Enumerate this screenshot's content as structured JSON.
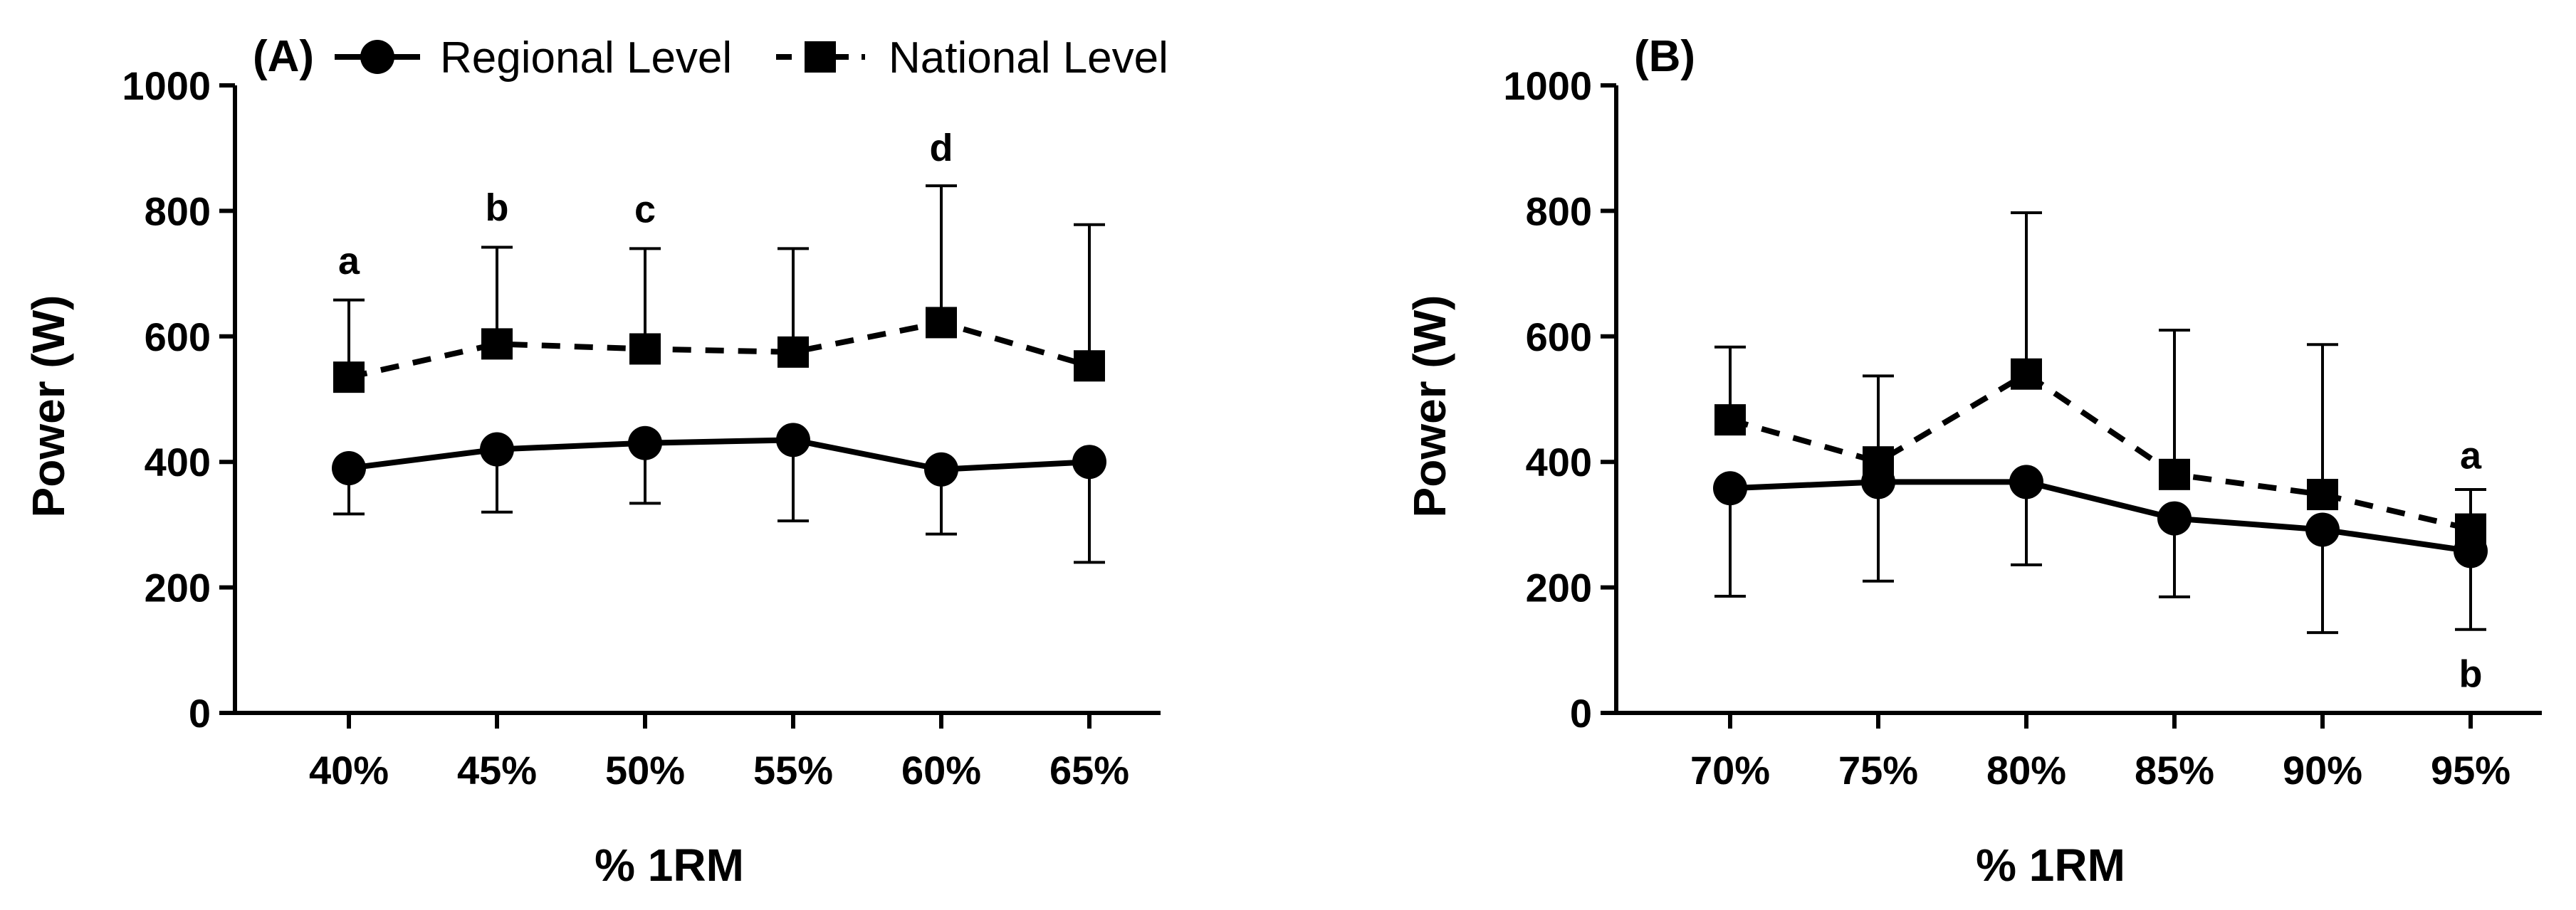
{
  "chart_data": [
    {
      "type": "line",
      "panel_label": "(A)",
      "categories": [
        "40%",
        "45%",
        "50%",
        "55%",
        "60%",
        "65%"
      ],
      "xlabel": "% 1RM",
      "ylabel": "Power (W)",
      "ylim": [
        0,
        1000
      ],
      "yticks": [
        "0",
        "200",
        "400",
        "600",
        "800",
        "1000"
      ],
      "grid": false,
      "legend_position": "top",
      "legend": [
        "Regional Level",
        "National Level"
      ],
      "series": [
        {
          "name": "Regional Level",
          "marker": "circle",
          "line": "solid",
          "values": [
            390,
            420,
            430,
            435,
            388,
            400
          ],
          "err_low": [
            317,
            320,
            334,
            306,
            285,
            240
          ],
          "err_high": null
        },
        {
          "name": "National Level",
          "marker": "square",
          "line": "dashed",
          "values": [
            535,
            588,
            580,
            575,
            622,
            553
          ],
          "err_low": null,
          "err_high": [
            658,
            742,
            740,
            740,
            840,
            778
          ]
        }
      ],
      "annotations": [
        {
          "category": "40%",
          "text": "a",
          "at": 720
        },
        {
          "category": "45%",
          "text": "b",
          "at": 805
        },
        {
          "category": "50%",
          "text": "c",
          "at": 802
        },
        {
          "category": "60%",
          "text": "d",
          "at": 900
        }
      ]
    },
    {
      "type": "line",
      "panel_label": "(B)",
      "categories": [
        "70%",
        "75%",
        "80%",
        "85%",
        "90%",
        "95%"
      ],
      "xlabel": "% 1RM",
      "ylabel": "Power (W)",
      "ylim": [
        0,
        1000
      ],
      "yticks": [
        "0",
        "200",
        "400",
        "600",
        "800",
        "1000"
      ],
      "grid": false,
      "legend_position": "none",
      "legend": [],
      "series": [
        {
          "name": "Regional Level",
          "marker": "circle",
          "line": "solid",
          "values": [
            358,
            368,
            368,
            310,
            292,
            258
          ],
          "err_low": [
            186,
            210,
            236,
            185,
            128,
            133
          ],
          "err_high": null
        },
        {
          "name": "National Level",
          "marker": "square",
          "line": "dashed",
          "values": [
            467,
            400,
            540,
            380,
            348,
            293
          ],
          "err_low": null,
          "err_high": [
            583,
            537,
            797,
            610,
            587,
            356
          ]
        }
      ],
      "annotations": [
        {
          "category": "95%",
          "text": "a",
          "at": 410
        },
        {
          "category": "95%",
          "text": "b",
          "at": 62
        }
      ]
    }
  ]
}
